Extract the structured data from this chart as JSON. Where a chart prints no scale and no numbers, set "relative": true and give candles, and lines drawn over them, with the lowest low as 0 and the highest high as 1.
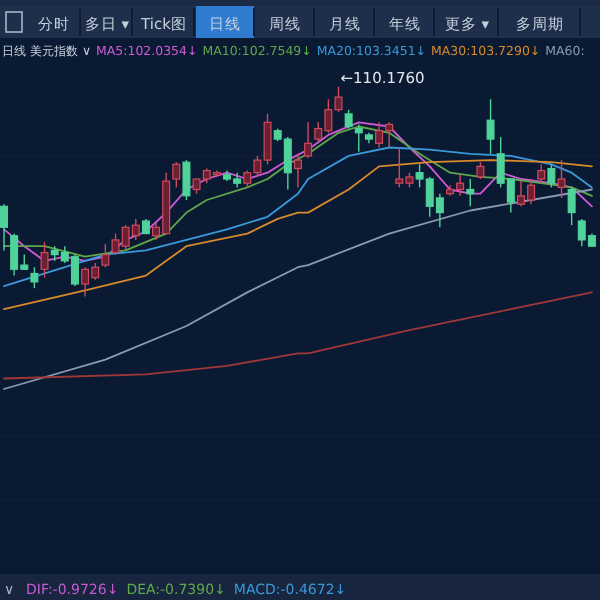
{
  "chart_data": {
    "type": "candlestick",
    "title": "日线 美元指数 ∨",
    "relative": true,
    "legend": "top",
    "annotations": [
      "分时",
      "多日 ▾",
      "Tick图",
      "日线",
      "周线",
      "月线",
      "年线",
      "更多 ▾",
      "多周期",
      "DIF:-0.9726↓",
      "DEA:-0.7390↓",
      "MACD:-0.4672↓",
      "←110.1760",
      "∨"
    ],
    "categories": [
      null,
      null,
      null,
      null,
      null,
      null,
      null,
      null,
      null,
      null,
      null,
      null,
      null,
      null,
      null,
      null,
      null,
      null,
      null,
      null,
      null,
      null,
      null,
      null,
      null,
      null,
      null,
      null,
      null,
      null,
      null,
      null,
      null,
      null,
      null,
      null,
      null,
      null,
      null,
      null,
      null,
      null,
      null,
      null,
      null,
      null,
      null,
      null,
      null,
      null,
      null,
      null,
      null,
      null,
      null,
      null,
      null,
      null,
      null
    ],
    "ohlc": [
      [
        0.43,
        0.44,
        0.22,
        0.33
      ],
      [
        0.29,
        0.3,
        0.1,
        0.13
      ],
      [
        0.15,
        0.2,
        0.13,
        0.13
      ],
      [
        0.11,
        0.14,
        0.04,
        0.07
      ],
      [
        0.13,
        0.26,
        0.09,
        0.21
      ],
      [
        0.22,
        0.24,
        0.17,
        0.2
      ],
      [
        0.21,
        0.24,
        0.16,
        0.17
      ],
      [
        0.19,
        0.2,
        0.05,
        0.06
      ],
      [
        0.06,
        0.14,
        0.0,
        0.13
      ],
      [
        0.09,
        0.16,
        0.08,
        0.14
      ],
      [
        0.15,
        0.25,
        0.14,
        0.2
      ],
      [
        0.21,
        0.3,
        0.2,
        0.27
      ],
      [
        0.24,
        0.34,
        0.22,
        0.33
      ],
      [
        0.29,
        0.37,
        0.27,
        0.34
      ],
      [
        0.36,
        0.37,
        0.3,
        0.3
      ],
      [
        0.29,
        0.35,
        0.27,
        0.33
      ],
      [
        0.3,
        0.59,
        0.3,
        0.55
      ],
      [
        0.56,
        0.64,
        0.52,
        0.63
      ],
      [
        0.64,
        0.65,
        0.46,
        0.48
      ],
      [
        0.51,
        0.56,
        0.49,
        0.56
      ],
      [
        0.56,
        0.61,
        0.54,
        0.6
      ],
      [
        0.58,
        0.6,
        0.57,
        0.59
      ],
      [
        0.58,
        0.6,
        0.55,
        0.56
      ],
      [
        0.56,
        0.59,
        0.52,
        0.54
      ],
      [
        0.54,
        0.6,
        0.52,
        0.59
      ],
      [
        0.59,
        0.67,
        0.57,
        0.65
      ],
      [
        0.65,
        0.87,
        0.63,
        0.83
      ],
      [
        0.79,
        0.8,
        0.74,
        0.75
      ],
      [
        0.75,
        0.76,
        0.51,
        0.59
      ],
      [
        0.61,
        0.68,
        0.52,
        0.65
      ],
      [
        0.67,
        0.83,
        0.66,
        0.73
      ],
      [
        0.75,
        0.83,
        0.74,
        0.8
      ],
      [
        0.79,
        0.94,
        0.78,
        0.89
      ],
      [
        0.89,
        1,
        0.88,
        0.95
      ],
      [
        0.87,
        0.89,
        0.8,
        0.81
      ],
      [
        0.8,
        0.82,
        0.69,
        0.78
      ],
      [
        0.77,
        0.78,
        0.73,
        0.75
      ],
      [
        0.73,
        0.83,
        0.71,
        0.79
      ],
      [
        0.79,
        0.83,
        0.71,
        0.82
      ],
      [
        0.54,
        0.71,
        0.52,
        0.56
      ],
      [
        0.54,
        0.59,
        0.52,
        0.57
      ],
      [
        0.59,
        0.63,
        0.52,
        0.56
      ],
      [
        0.56,
        0.57,
        0.38,
        0.43
      ],
      [
        0.47,
        0.49,
        0.33,
        0.4
      ],
      [
        0.49,
        0.53,
        0.48,
        0.51
      ],
      [
        0.51,
        0.58,
        0.48,
        0.54
      ],
      [
        0.51,
        0.56,
        0.43,
        0.49
      ],
      [
        0.57,
        0.64,
        0.56,
        0.62
      ],
      [
        0.84,
        0.94,
        0.68,
        0.75
      ],
      [
        0.68,
        0.76,
        0.52,
        0.54
      ],
      [
        0.56,
        0.56,
        0.4,
        0.45
      ],
      [
        0.44,
        0.55,
        0.43,
        0.48
      ],
      [
        0.46,
        0.56,
        0.44,
        0.53
      ],
      [
        0.56,
        0.63,
        0.54,
        0.6
      ],
      [
        0.61,
        0.63,
        0.52,
        0.54
      ],
      [
        0.52,
        0.65,
        0.47,
        0.56
      ],
      [
        0.51,
        0.52,
        0.34,
        0.4
      ],
      [
        0.36,
        0.37,
        0.24,
        0.27
      ],
      [
        0.29,
        0.3,
        0.24,
        0.24
      ]
    ],
    "series": [
      {
        "name": "MA5:102.0354↓",
        "type": "line",
        "color": "#d05ad8",
        "values": [
          0.32,
          null,
          0.24,
          null,
          0.17,
          null,
          0.19,
          null,
          0.17,
          null,
          0.19,
          null,
          0.27,
          null,
          0.31,
          null,
          0.4,
          null,
          0.51,
          null,
          0.56,
          null,
          0.59,
          null,
          0.56,
          null,
          0.59,
          null,
          0.65,
          null,
          0.7,
          null,
          0.77,
          null,
          null,
          0.83,
          null,
          null,
          0.81,
          null,
          0.71,
          null,
          0.62,
          null,
          0.51,
          null,
          0.49,
          0.49,
          null,
          0.59,
          null,
          0.56,
          null,
          null,
          0.54,
          null,
          0.52,
          null,
          0.43
        ]
      },
      {
        "name": "MA10:102.7549↓",
        "type": "line",
        "color": "#5fa84a",
        "values": [
          0.24,
          null,
          null,
          null,
          0.24,
          null,
          null,
          null,
          0.19,
          null,
          null,
          null,
          0.22,
          null,
          null,
          null,
          0.3,
          null,
          0.4,
          null,
          0.46,
          null,
          null,
          null,
          0.52,
          null,
          0.56,
          null,
          0.63,
          null,
          0.68,
          null,
          null,
          0.78,
          null,
          0.81,
          null,
          null,
          0.78,
          null,
          null,
          0.68,
          null,
          null,
          0.59,
          null,
          null,
          0.57,
          null,
          null,
          0.56,
          null,
          null,
          0.54,
          null,
          null,
          0.52,
          null,
          0.48
        ]
      },
      {
        "name": "MA20:103.3451↓",
        "type": "line",
        "color": "#3a9ad9",
        "values": [
          0.05,
          null,
          null,
          null,
          null,
          null,
          0.14,
          null,
          null,
          null,
          0.2,
          null,
          null,
          null,
          0.22,
          null,
          null,
          null,
          0.27,
          null,
          null,
          null,
          0.32,
          null,
          null,
          null,
          0.38,
          null,
          null,
          0.49,
          0.56,
          null,
          null,
          null,
          0.67,
          null,
          null,
          null,
          0.71,
          null,
          null,
          null,
          0.7,
          null,
          null,
          null,
          0.68,
          null,
          null,
          null,
          0.67,
          null,
          null,
          null,
          0.63,
          null,
          0.59,
          null,
          0.52
        ]
      },
      {
        "name": "MA30:103.7290↓",
        "type": "line",
        "color": "#d98a2a",
        "values": [
          -0.06,
          null,
          null,
          null,
          null,
          null,
          null,
          null,
          0.03,
          null,
          null,
          null,
          null,
          null,
          0.1,
          null,
          null,
          null,
          0.24,
          null,
          null,
          null,
          null,
          null,
          0.3,
          null,
          null,
          0.37,
          null,
          0.4,
          0.4,
          null,
          null,
          null,
          0.51,
          null,
          null,
          0.62,
          null,
          null,
          null,
          null,
          0.64,
          null,
          null,
          null,
          null,
          null,
          0.65,
          null,
          null,
          null,
          null,
          null,
          0.64,
          null,
          null,
          null,
          0.62
        ]
      },
      {
        "name": "MA60:",
        "type": "line",
        "color": "#8a9ab0",
        "values": [
          -0.44,
          null,
          null,
          null,
          null,
          null,
          null,
          null,
          null,
          null,
          -0.3,
          null,
          null,
          null,
          null,
          null,
          null,
          null,
          -0.14,
          null,
          null,
          null,
          null,
          null,
          0.02,
          null,
          null,
          null,
          null,
          0.14,
          0.15,
          null,
          null,
          null,
          null,
          null,
          null,
          null,
          0.3,
          null,
          null,
          null,
          null,
          null,
          null,
          null,
          0.41,
          null,
          null,
          null,
          null,
          null,
          0.46,
          null,
          null,
          null,
          null,
          null,
          0.51
        ]
      },
      {
        "type": "line",
        "color": "#a03838",
        "values": [
          -0.39,
          null,
          null,
          null,
          null,
          null,
          null,
          null,
          null,
          null,
          null,
          null,
          null,
          null,
          -0.37,
          null,
          null,
          null,
          null,
          null,
          null,
          null,
          -0.33,
          null,
          null,
          null,
          null,
          null,
          null,
          -0.27,
          -0.27,
          null,
          null,
          null,
          null,
          null,
          null,
          null,
          null,
          null,
          -0.16,
          null,
          null,
          null,
          null,
          null,
          null,
          null,
          null,
          null,
          -0.06,
          null,
          null,
          null,
          null,
          null,
          null,
          null,
          0.02
        ]
      }
    ]
  }
}
